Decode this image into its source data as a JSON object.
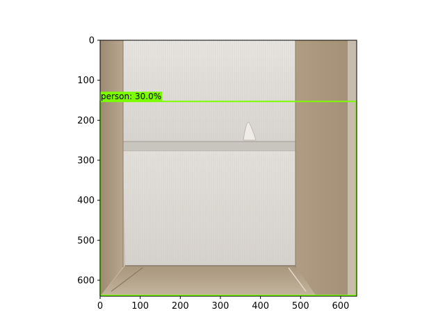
{
  "figure": {
    "image_extent": {
      "x": [
        0,
        640
      ],
      "y": [
        0,
        640
      ]
    },
    "x_ticks": [
      0,
      100,
      200,
      300,
      400,
      500,
      600
    ],
    "y_ticks": [
      0,
      100,
      200,
      300,
      400,
      500,
      600
    ],
    "y_inverted": true,
    "image_subject": "open cardboard box interior viewed from above"
  },
  "detections": [
    {
      "label": "person: 30.0%",
      "class": "person",
      "confidence": 30.0,
      "box": {
        "x0": 0,
        "y0": 153,
        "x1": 638,
        "y1": 638
      },
      "color": "#7cfc00"
    }
  ],
  "colors": {
    "box_stroke": "#7cfc00",
    "label_bg": "#7cfc00",
    "cardboard_light": "#d9d6d0",
    "cardboard_dark": "#a8957c"
  }
}
